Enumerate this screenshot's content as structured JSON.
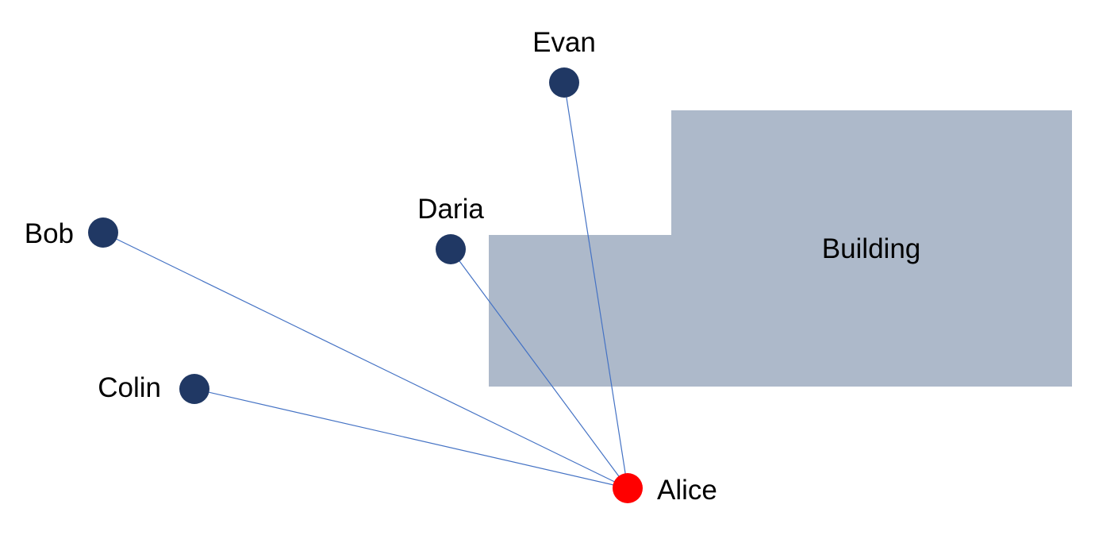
{
  "diagram": {
    "building": {
      "label": "Building",
      "color": "#adb9ca"
    },
    "hub": {
      "name": "Alice",
      "color": "#ff0000"
    },
    "peers": [
      {
        "name": "Bob"
      },
      {
        "name": "Colin"
      },
      {
        "name": "Daria"
      },
      {
        "name": "Evan"
      }
    ],
    "colors": {
      "peer_node": "#203864",
      "link": "#4472c4"
    }
  }
}
